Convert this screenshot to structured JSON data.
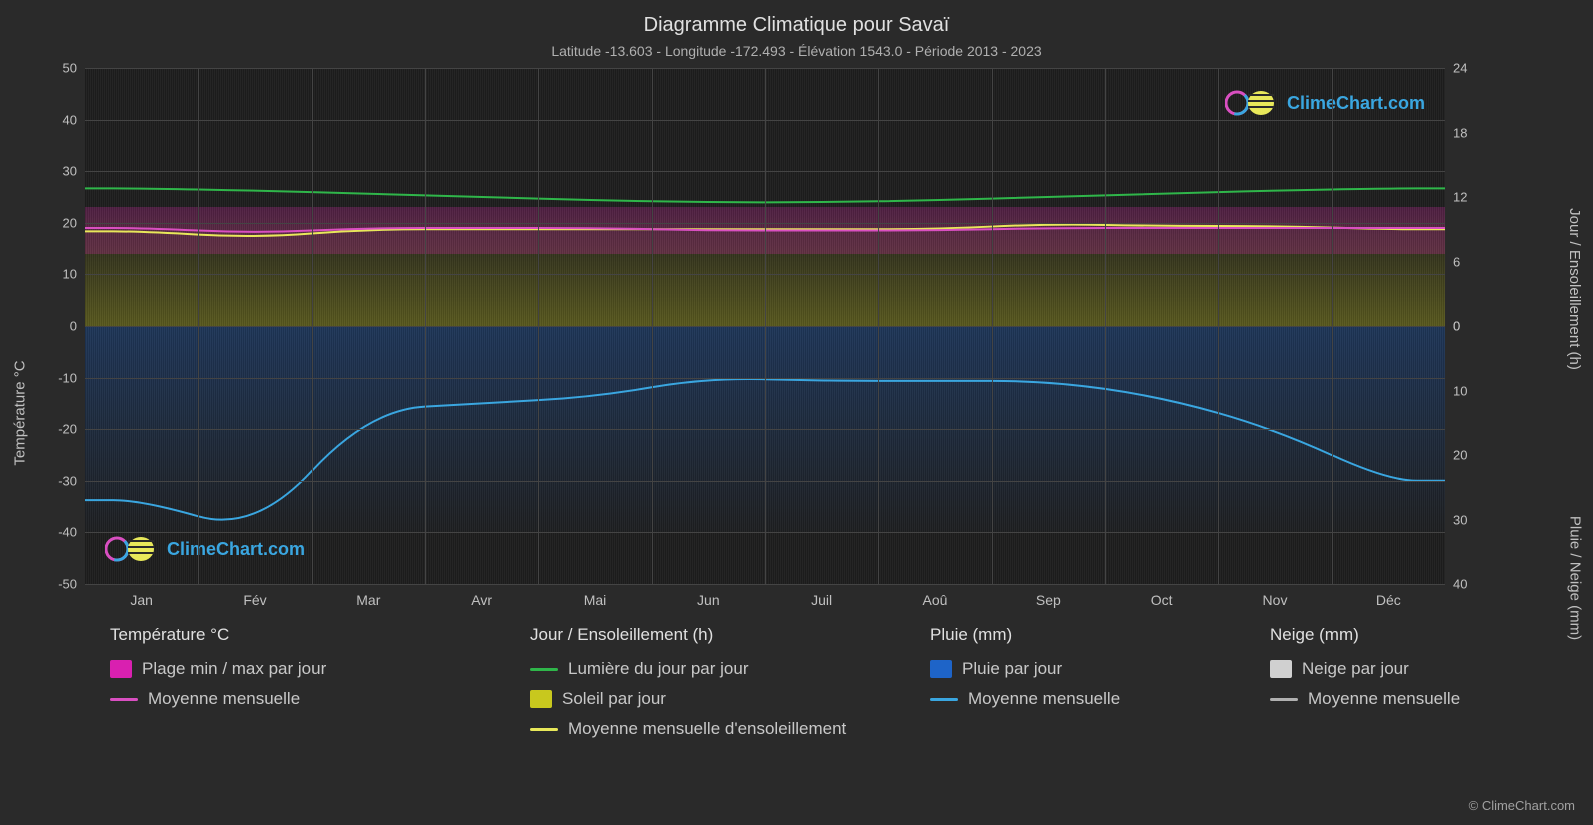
{
  "header": {
    "title": "Diagramme Climatique pour Savaï",
    "subtitle": "Latitude -13.603 - Longitude -172.493 - Élévation 1543.0 - Période 2013 - 2023"
  },
  "axes": {
    "left_label": "Température °C",
    "right_top_label": "Jour / Ensoleillement (h)",
    "right_bottom_label": "Pluie / Neige (mm)",
    "left_ticks": [
      50,
      40,
      30,
      20,
      10,
      0,
      -10,
      -20,
      -30,
      -40,
      -50
    ],
    "right_top_ticks": [
      24,
      18,
      12,
      6,
      0
    ],
    "right_bottom_ticks": [
      0,
      10,
      20,
      30,
      40
    ],
    "months": [
      "Jan",
      "Fév",
      "Mar",
      "Avr",
      "Mai",
      "Jun",
      "Juil",
      "Aoû",
      "Sep",
      "Oct",
      "Nov",
      "Déc"
    ]
  },
  "chart": {
    "background_color": "#1e1e1e",
    "grid_color": "#444444",
    "left_ylim": [
      -50,
      50
    ],
    "right_top_ylim": [
      0,
      24
    ],
    "right_bottom_ylim": [
      0,
      40
    ],
    "series": {
      "daylight_line": {
        "color": "#2fb64a",
        "width": 2,
        "values_h": [
          12.8,
          12.6,
          12.3,
          12.0,
          11.7,
          11.5,
          11.5,
          11.7,
          12.0,
          12.3,
          12.6,
          12.8
        ]
      },
      "sunshine_avg_line": {
        "color": "#e8e85a",
        "width": 2,
        "values_h": [
          8.8,
          8.2,
          9.0,
          9.0,
          9.0,
          9.0,
          9.0,
          9.0,
          9.5,
          9.3,
          9.3,
          9.0
        ]
      },
      "temp_avg_line": {
        "color": "#d94fc1",
        "width": 2,
        "values_c": [
          19,
          18,
          19,
          19,
          19,
          18.5,
          18.5,
          18.5,
          19,
          19,
          19,
          19
        ]
      },
      "rain_avg_line": {
        "color": "#3aa6e0",
        "width": 2,
        "values_mm": [
          27,
          32,
          13,
          12,
          11,
          8,
          8.5,
          8.5,
          8.5,
          11,
          16,
          24
        ]
      },
      "temp_band": {
        "min_c": 14,
        "max_c": 23,
        "color": "#e628b4"
      },
      "sunshine_band": {
        "min_h": 0,
        "max_h": 11,
        "color": "#c8c81e"
      },
      "rain_band": {
        "min_mm": 0,
        "max_mm": 32,
        "color": "#1e64c8"
      }
    }
  },
  "legend": {
    "col1": {
      "title": "Température °C",
      "items": [
        {
          "label": "Plage min / max par jour",
          "type": "box",
          "color": "#d920b0"
        },
        {
          "label": "Moyenne mensuelle",
          "type": "line",
          "color": "#d94fc1"
        }
      ]
    },
    "col2": {
      "title": "Jour / Ensoleillement (h)",
      "items": [
        {
          "label": "Lumière du jour par jour",
          "type": "line",
          "color": "#2fb64a"
        },
        {
          "label": "Soleil par jour",
          "type": "box",
          "color": "#c8c81e"
        },
        {
          "label": "Moyenne mensuelle d'ensoleillement",
          "type": "line",
          "color": "#e8e85a"
        }
      ]
    },
    "col3": {
      "title": "Pluie (mm)",
      "items": [
        {
          "label": "Pluie par jour",
          "type": "box",
          "color": "#1e64c8"
        },
        {
          "label": "Moyenne mensuelle",
          "type": "line",
          "color": "#3aa6e0"
        }
      ]
    },
    "col4": {
      "title": "Neige (mm)",
      "items": [
        {
          "label": "Neige par jour",
          "type": "box",
          "color": "#d0d0d0"
        },
        {
          "label": "Moyenne mensuelle",
          "type": "line",
          "color": "#b0b0b0"
        }
      ]
    }
  },
  "branding": {
    "name": "ClimeChart.com",
    "copyright": "© ClimeChart.com"
  }
}
